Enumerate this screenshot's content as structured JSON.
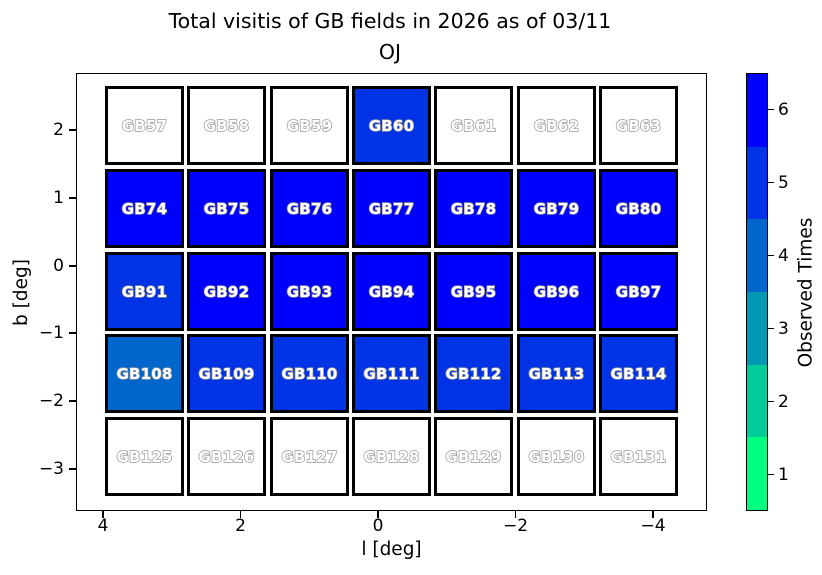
{
  "title": {
    "line1": "Total visitis of GB fields in 2026 as of 03/11",
    "line2": "OJ"
  },
  "axes": {
    "xlabel": "l [deg]",
    "ylabel": "b [deg]",
    "x_ticks": [
      "4",
      "2",
      "0",
      "−2",
      "−4"
    ],
    "y_ticks": [
      "2",
      "1",
      "0",
      "−1",
      "−2",
      "−3"
    ]
  },
  "colorbar": {
    "label": "Observed Times",
    "ticks_top_to_bottom": [
      "6",
      "5",
      "4",
      "3",
      "2",
      "1"
    ],
    "band_colors_top_to_bottom": [
      "#0000ff",
      "#0033e6",
      "#0066cc",
      "#0099b3",
      "#00cc99",
      "#00ff80"
    ]
  },
  "value_colors": {
    "0": "#ffffff",
    "4": "#0066cc",
    "5": "#0033e6",
    "6": "#0000ff"
  },
  "chart_data": {
    "type": "heatmap",
    "title": "Total visitis of GB fields in 2026 as of 03/11",
    "subtitle": "OJ",
    "xlabel": "l [deg]",
    "ylabel": "b [deg]",
    "x_tick_labels": [
      4,
      2,
      0,
      -2,
      -4
    ],
    "y_tick_labels": [
      2,
      1,
      0,
      -1,
      -2,
      -3
    ],
    "grid": false,
    "colorbar": {
      "label": "Observed Times",
      "ticks": [
        1,
        2,
        3,
        4,
        5,
        6
      ],
      "style": "discrete 6-band colormap, green (low) to blue (high)"
    },
    "rows": [
      {
        "fields": [
          "GB57",
          "GB58",
          "GB59",
          "GB60",
          "GB61",
          "GB62",
          "GB63"
        ],
        "observed_times": [
          0,
          0,
          0,
          5,
          0,
          0,
          0
        ]
      },
      {
        "fields": [
          "GB74",
          "GB75",
          "GB76",
          "GB77",
          "GB78",
          "GB79",
          "GB80"
        ],
        "observed_times": [
          6,
          6,
          6,
          6,
          6,
          6,
          6
        ]
      },
      {
        "fields": [
          "GB91",
          "GB92",
          "GB93",
          "GB94",
          "GB95",
          "GB96",
          "GB97"
        ],
        "observed_times": [
          5,
          6,
          6,
          6,
          6,
          6,
          6
        ]
      },
      {
        "fields": [
          "GB108",
          "GB109",
          "GB110",
          "GB111",
          "GB112",
          "GB113",
          "GB114"
        ],
        "observed_times": [
          4,
          5,
          5,
          5,
          5,
          5,
          5
        ]
      },
      {
        "fields": [
          "GB125",
          "GB126",
          "GB127",
          "GB128",
          "GB129",
          "GB130",
          "GB131"
        ],
        "observed_times": [
          0,
          0,
          0,
          0,
          0,
          0,
          0
        ]
      }
    ]
  }
}
